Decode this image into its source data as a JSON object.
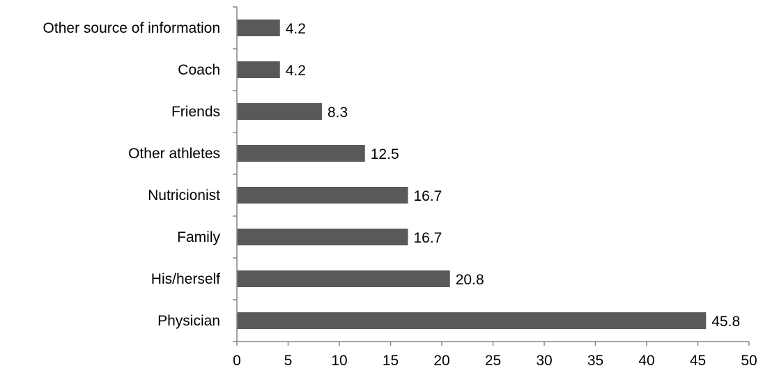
{
  "chart_data": {
    "type": "bar",
    "orientation": "horizontal",
    "categories": [
      "Physician",
      "His/herself",
      "Family",
      "Nutricionist",
      "Other athletes",
      "Friends",
      "Coach",
      "Other source of information"
    ],
    "values": [
      45.8,
      20.8,
      16.7,
      16.7,
      12.5,
      8.3,
      4.2,
      4.2
    ],
    "data_labels": [
      "45.8",
      "20.8",
      "16.7",
      "16.7",
      "12.5",
      "8.3",
      "4.2",
      "4.2"
    ],
    "title": "",
    "xlabel": "",
    "ylabel": "",
    "xlim": [
      0,
      50
    ],
    "x_ticks": [
      0,
      5,
      10,
      15,
      20,
      25,
      30,
      35,
      40,
      45,
      50
    ],
    "grid": false,
    "legend": "none",
    "bar_color": "#595959",
    "axis_color": "#868686"
  }
}
